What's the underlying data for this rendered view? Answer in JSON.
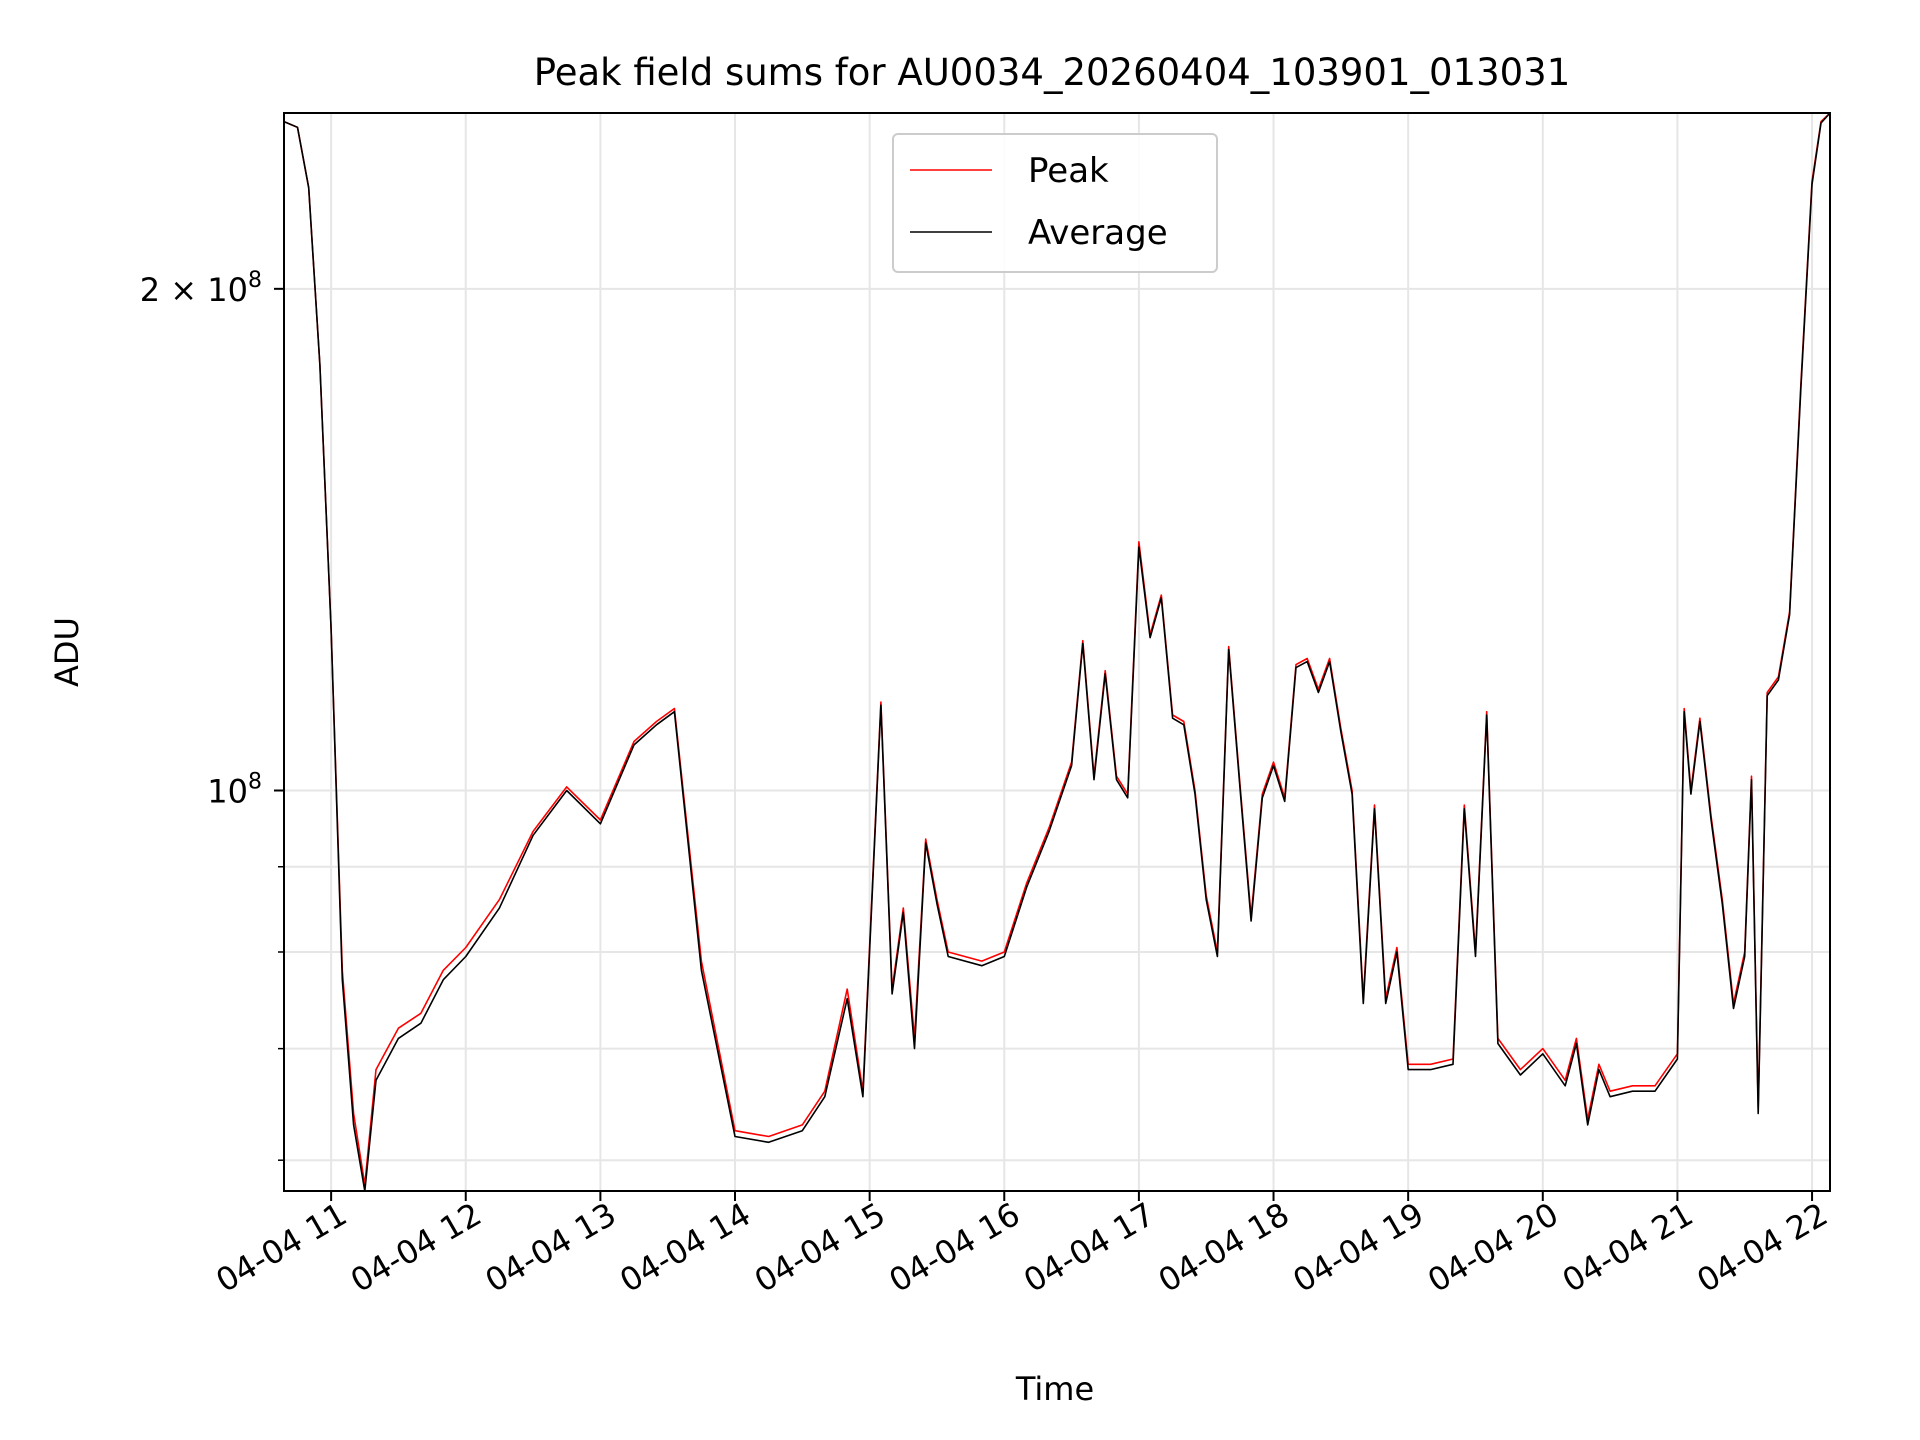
{
  "chart_data": {
    "type": "line",
    "title": "Peak field sums for AU0034_20260404_103901_013031",
    "xlabel": "Time",
    "ylabel": "ADU",
    "y_scale": "log",
    "ylim": [
      57500000,
      255000000
    ],
    "xlim": [
      "2026-04-04 10:39",
      "2026-04-04 22:08"
    ],
    "grid": true,
    "legend": {
      "position": "top-center",
      "entries": [
        "Peak",
        "Average"
      ]
    },
    "x_ticks": [
      "04-04 11",
      "04-04 12",
      "04-04 13",
      "04-04 14",
      "04-04 15",
      "04-04 16",
      "04-04 17",
      "04-04 18",
      "04-04 19",
      "04-04 20",
      "04-04 21",
      "04-04 22"
    ],
    "x_tick_times": [
      "2026-04-04 11:00",
      "2026-04-04 12:00",
      "2026-04-04 13:00",
      "2026-04-04 14:00",
      "2026-04-04 15:00",
      "2026-04-04 16:00",
      "2026-04-04 17:00",
      "2026-04-04 18:00",
      "2026-04-04 19:00",
      "2026-04-04 20:00",
      "2026-04-04 21:00",
      "2026-04-04 22:00"
    ],
    "y_major_ticks": [
      {
        "value": 100000000,
        "label_main": "10",
        "label_exp": "8",
        "label_prefix": ""
      },
      {
        "value": 200000000,
        "label_main": "10",
        "label_exp": "8",
        "label_prefix": "2 × "
      }
    ],
    "y_minor_ticks": [
      60000000,
      70000000,
      80000000,
      90000000
    ],
    "x_times": [
      "2026-04-04 10:39",
      "2026-04-04 10:45",
      "2026-04-04 10:50",
      "2026-04-04 10:55",
      "2026-04-04 11:00",
      "2026-04-04 11:05",
      "2026-04-04 11:10",
      "2026-04-04 11:15",
      "2026-04-04 11:20",
      "2026-04-04 11:30",
      "2026-04-04 11:40",
      "2026-04-04 11:50",
      "2026-04-04 12:00",
      "2026-04-04 12:15",
      "2026-04-04 12:30",
      "2026-04-04 12:45",
      "2026-04-04 13:00",
      "2026-04-04 13:15",
      "2026-04-04 13:25",
      "2026-04-04 13:33",
      "2026-04-04 13:45",
      "2026-04-04 14:00",
      "2026-04-04 14:15",
      "2026-04-04 14:30",
      "2026-04-04 14:40",
      "2026-04-04 14:50",
      "2026-04-04 14:57",
      "2026-04-04 15:05",
      "2026-04-04 15:10",
      "2026-04-04 15:15",
      "2026-04-04 15:20",
      "2026-04-04 15:25",
      "2026-04-04 15:30",
      "2026-04-04 15:35",
      "2026-04-04 15:50",
      "2026-04-04 16:00",
      "2026-04-04 16:10",
      "2026-04-04 16:20",
      "2026-04-04 16:30",
      "2026-04-04 16:35",
      "2026-04-04 16:40",
      "2026-04-04 16:45",
      "2026-04-04 16:50",
      "2026-04-04 16:55",
      "2026-04-04 17:00",
      "2026-04-04 17:05",
      "2026-04-04 17:10",
      "2026-04-04 17:15",
      "2026-04-04 17:20",
      "2026-04-04 17:25",
      "2026-04-04 17:30",
      "2026-04-04 17:35",
      "2026-04-04 17:40",
      "2026-04-04 17:45",
      "2026-04-04 17:50",
      "2026-04-04 17:55",
      "2026-04-04 18:00",
      "2026-04-04 18:05",
      "2026-04-04 18:10",
      "2026-04-04 18:15",
      "2026-04-04 18:20",
      "2026-04-04 18:25",
      "2026-04-04 18:30",
      "2026-04-04 18:35",
      "2026-04-04 18:40",
      "2026-04-04 18:45",
      "2026-04-04 18:50",
      "2026-04-04 18:55",
      "2026-04-04 19:00",
      "2026-04-04 19:10",
      "2026-04-04 19:20",
      "2026-04-04 19:25",
      "2026-04-04 19:30",
      "2026-04-04 19:35",
      "2026-04-04 19:40",
      "2026-04-04 19:50",
      "2026-04-04 20:00",
      "2026-04-04 20:10",
      "2026-04-04 20:15",
      "2026-04-04 20:20",
      "2026-04-04 20:25",
      "2026-04-04 20:30",
      "2026-04-04 20:40",
      "2026-04-04 20:50",
      "2026-04-04 21:00",
      "2026-04-04 21:03",
      "2026-04-04 21:06",
      "2026-04-04 21:10",
      "2026-04-04 21:15",
      "2026-04-04 21:20",
      "2026-04-04 21:25",
      "2026-04-04 21:30",
      "2026-04-04 21:33",
      "2026-04-04 21:36",
      "2026-04-04 21:40",
      "2026-04-04 21:45",
      "2026-04-04 21:50",
      "2026-04-04 21:55",
      "2026-04-04 22:00",
      "2026-04-04 22:04",
      "2026-04-04 22:08"
    ],
    "series": [
      {
        "name": "Peak",
        "color": "#ff0000",
        "values": [
          252000000,
          250000000,
          230000000,
          180000000,
          125000000,
          78000000,
          64000000,
          58000000,
          68000000,
          72000000,
          73500000,
          78000000,
          80500000,
          86000000,
          94500000,
          100500000,
          96000000,
          107000000,
          110000000,
          112000000,
          79000000,
          62500000,
          62000000,
          63000000,
          66000000,
          76000000,
          66000000,
          113000000,
          76000000,
          85000000,
          71000000,
          93500000,
          86000000,
          80000000,
          79000000,
          80000000,
          88000000,
          95000000,
          104000000,
          123000000,
          102000000,
          118000000,
          102000000,
          99500000,
          141000000,
          124000000,
          131000000,
          111000000,
          110000000,
          100000000,
          86500000,
          80000000,
          122000000,
          101000000,
          84000000,
          99500000,
          104000000,
          99000000,
          119000000,
          120000000,
          115000000,
          120000000,
          109000000,
          100000000,
          75000000,
          98000000,
          75000000,
          80500000,
          68500000,
          68500000,
          69000000,
          98000000,
          80000000,
          111500000,
          71000000,
          68000000,
          70000000,
          67000000,
          71000000,
          63500000,
          68500000,
          66000000,
          66500000,
          66500000,
          69500000,
          112000000,
          100000000,
          110500000,
          96500000,
          86000000,
          74500000,
          80000000,
          102000000,
          64500000,
          114500000,
          117000000,
          128000000,
          175000000,
          232000000,
          252000000,
          255000000
        ],
        "legend_label": "Peak"
      },
      {
        "name": "Average",
        "color": "#000000",
        "values": [
          252000000,
          250000000,
          230000000,
          180000000,
          125000000,
          77000000,
          63000000,
          57500000,
          67000000,
          71000000,
          72500000,
          77000000,
          79500000,
          85000000,
          94000000,
          100000000,
          95500000,
          106500000,
          109500000,
          111500000,
          78000000,
          62000000,
          61500000,
          62500000,
          65500000,
          75000000,
          65500000,
          112500000,
          75500000,
          84500000,
          70000000,
          93000000,
          85500000,
          79500000,
          78500000,
          79500000,
          87500000,
          94500000,
          103500000,
          122500000,
          101500000,
          117500000,
          101500000,
          99000000,
          140000000,
          123500000,
          130500000,
          110500000,
          109500000,
          99500000,
          86000000,
          79500000,
          121500000,
          100500000,
          83500000,
          99000000,
          103500000,
          98500000,
          118500000,
          119500000,
          114500000,
          119500000,
          108500000,
          99500000,
          74500000,
          97500000,
          74500000,
          80000000,
          68000000,
          68000000,
          68500000,
          97500000,
          79500000,
          111000000,
          70500000,
          67500000,
          69500000,
          66500000,
          70500000,
          63000000,
          68000000,
          65500000,
          66000000,
          66000000,
          69000000,
          111500000,
          99500000,
          110000000,
          96000000,
          85500000,
          74000000,
          79500000,
          101500000,
          64000000,
          114000000,
          116500000,
          127500000,
          174000000,
          231000000,
          251500000,
          255000000
        ],
        "legend_label": "Average"
      }
    ]
  }
}
